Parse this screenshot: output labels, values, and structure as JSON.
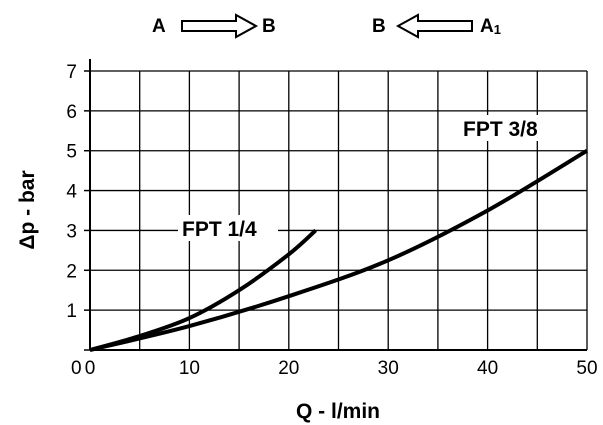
{
  "flow_direction": {
    "left": {
      "from": "A",
      "to": "B",
      "arrow": "right-arrow-icon"
    },
    "right": {
      "from": "B",
      "to": "A",
      "to_subscript": "1",
      "arrow": "left-arrow-icon"
    }
  },
  "chart_data": {
    "type": "line",
    "xlabel": "Q - l/min",
    "ylabel": "Δp - bar",
    "xlim": [
      0,
      50
    ],
    "ylim": [
      0,
      7
    ],
    "grid": true,
    "x_ticks": [
      "0",
      "10",
      "20",
      "30",
      "40",
      "50"
    ],
    "y_ticks": [
      "0",
      "1",
      "2",
      "3",
      "4",
      "5",
      "6",
      "7"
    ],
    "series": [
      {
        "name": "FPT 1/4",
        "x": [
          0,
          5,
          10,
          15,
          20,
          22.7
        ],
        "y": [
          0,
          0.35,
          0.8,
          1.5,
          2.4,
          3.0
        ]
      },
      {
        "name": "FPT 3/8",
        "x": [
          0,
          10,
          20,
          30,
          40,
          50
        ],
        "y": [
          0,
          0.6,
          1.35,
          2.25,
          3.5,
          5.0
        ]
      }
    ],
    "color": "#000000"
  }
}
